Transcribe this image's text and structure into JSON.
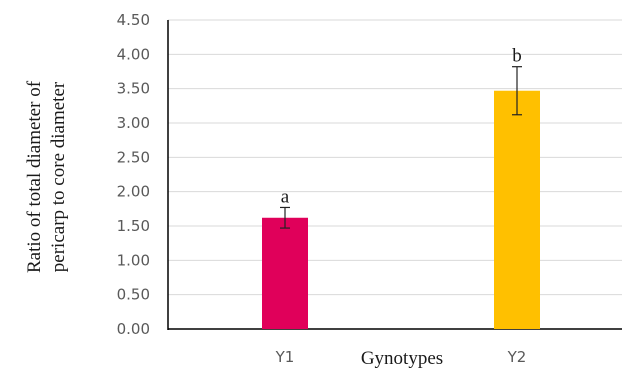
{
  "chart_data": {
    "type": "bar",
    "categories": [
      "Y1",
      "Y2"
    ],
    "values": [
      1.62,
      3.47
    ],
    "errors": [
      0.15,
      0.35
    ],
    "significance_letters": [
      "a",
      "b"
    ],
    "colors": [
      "#e0005a",
      "#ffc000"
    ],
    "ylim": [
      0,
      4.5
    ],
    "yticks": [
      "0.00",
      "0.50",
      "1.00",
      "1.50",
      "2.00",
      "2.50",
      "3.00",
      "3.50",
      "4.00",
      "4.50"
    ],
    "ylabel_line1": "Ratio of  total diameter of",
    "ylabel_line2": "pericarp to core diameter",
    "xlabel": "Gynotypes",
    "grid": true,
    "grid_color": "#d9d9d9"
  }
}
